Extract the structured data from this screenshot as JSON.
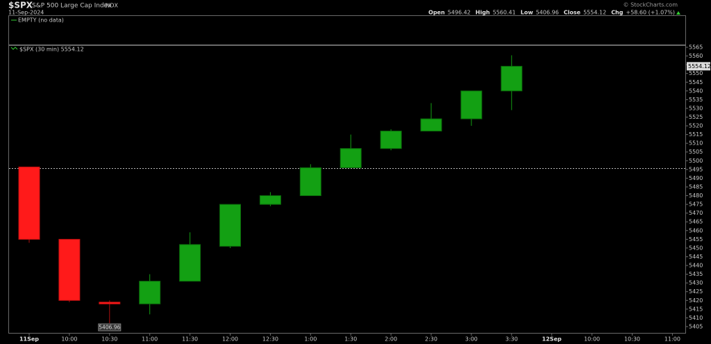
{
  "chart_data": {
    "type": "candlestick",
    "title": "$SPX",
    "subtitle": "S&P 500 Large Cap Index",
    "exchange": "INDX",
    "date": "11-Sep-2024",
    "credit": "© StockCharts.com",
    "stats": [
      {
        "label": "Open",
        "value": 5496.42
      },
      {
        "label": "High",
        "value": 5560.41
      },
      {
        "label": "Low",
        "value": 5406.96
      },
      {
        "label": "Close",
        "value": 5554.12
      },
      {
        "label": "Chg",
        "value": "+58.60 (+1.07%)"
      }
    ],
    "upper_panel_label": "EMPTY (no data)",
    "legend_label": "$SPX (30 min) 5554.12",
    "categories": [
      "11Sep",
      "10:00",
      "10:30",
      "11:00",
      "11:30",
      "12:00",
      "12:30",
      "1:00",
      "1:30",
      "2:00",
      "2:30",
      "3:00",
      "3:30",
      "12Sep",
      "10:00",
      "10:30",
      "11:00"
    ],
    "open": [
      5496.42,
      5455,
      5419,
      5418,
      5431,
      5451,
      5475,
      5480,
      5496,
      5507,
      5517,
      5524,
      5540,
      null,
      null,
      null,
      null
    ],
    "high": [
      5496.42,
      5455,
      5420,
      5435,
      5459,
      5475,
      5482,
      5498,
      5515,
      5518,
      5533,
      5540,
      5560.41,
      null,
      null,
      null,
      null
    ],
    "low": [
      5453,
      5419,
      5406.96,
      5412,
      5431,
      5450,
      5474,
      5480,
      5496,
      5506,
      5517,
      5520,
      5529,
      null,
      null,
      null,
      null
    ],
    "close": [
      5455,
      5420,
      5418,
      5431,
      5452,
      5475,
      5480,
      5496,
      5507,
      5517,
      5524,
      5540,
      5554.12,
      null,
      null,
      null,
      null
    ],
    "up_color": "#13a013",
    "down_color": "#ff1a1a",
    "reference_line": 5495.52,
    "ylim": [
      5401,
      5566.2
    ],
    "yticks": [
      5405,
      5410,
      5415,
      5420,
      5425,
      5430,
      5435,
      5440,
      5445,
      5450,
      5455,
      5460,
      5465,
      5470,
      5475,
      5480,
      5485,
      5490,
      5495,
      5500,
      5505,
      5510,
      5515,
      5520,
      5525,
      5530,
      5535,
      5540,
      5545,
      5550,
      5555,
      5560,
      5565
    ]
  }
}
